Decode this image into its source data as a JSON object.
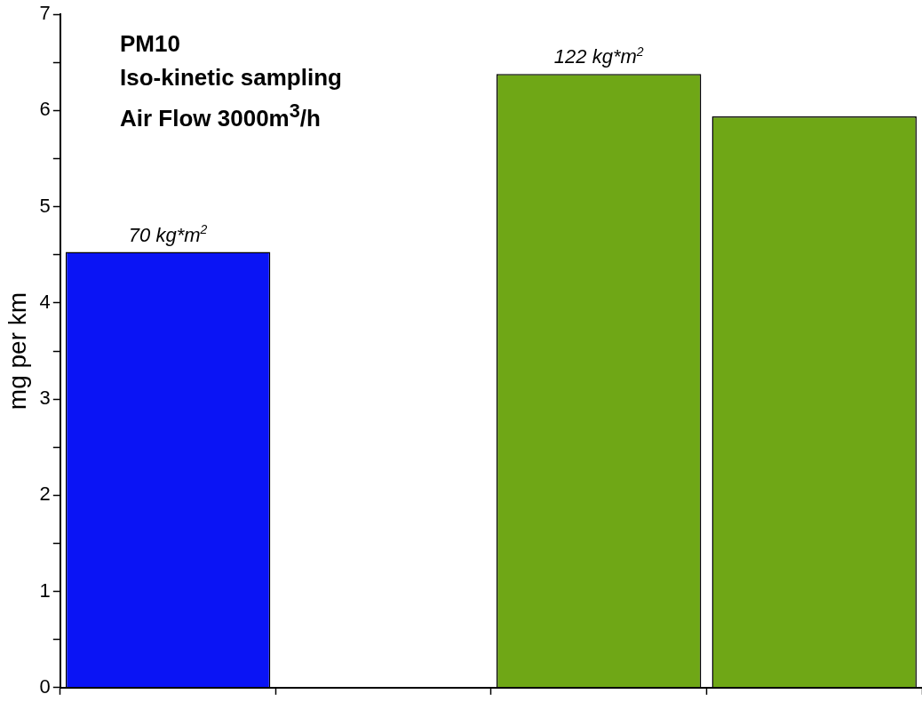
{
  "chart_data": {
    "type": "bar",
    "title": "PM10",
    "subtitle": "Iso-kinetic sampling",
    "annotations": [
      "Air Flow 3000m$^{3}$/h",
      {
        "text": "70 kg*m$^{2}$",
        "y": 4.53
      },
      {
        "text": "122 kg*m$^{2}$",
        "y": 6.38
      }
    ],
    "ylabel": "mg per km",
    "categories": [
      null,
      null,
      null,
      null
    ],
    "values": [
      4.53,
      null,
      6.38,
      5.94
    ],
    "colors": [
      "#0a14f5",
      "#6fa716",
      "#6fa716",
      "#6fa716"
    ],
    "ylim": [
      0,
      7
    ],
    "yticks": [
      0,
      {
        "value": 0.5,
        "label": null
      },
      1,
      {
        "value": 1.5,
        "label": null
      },
      2,
      {
        "value": 2.5,
        "label": null
      },
      3,
      {
        "value": 3.5,
        "label": null
      },
      4,
      {
        "value": 4.5,
        "label": null
      },
      5,
      {
        "value": 5.5,
        "label": null
      },
      6,
      {
        "value": 6.5,
        "label": null
      },
      7
    ],
    "tick_labels": "y",
    "grid": false,
    "legend": false
  }
}
